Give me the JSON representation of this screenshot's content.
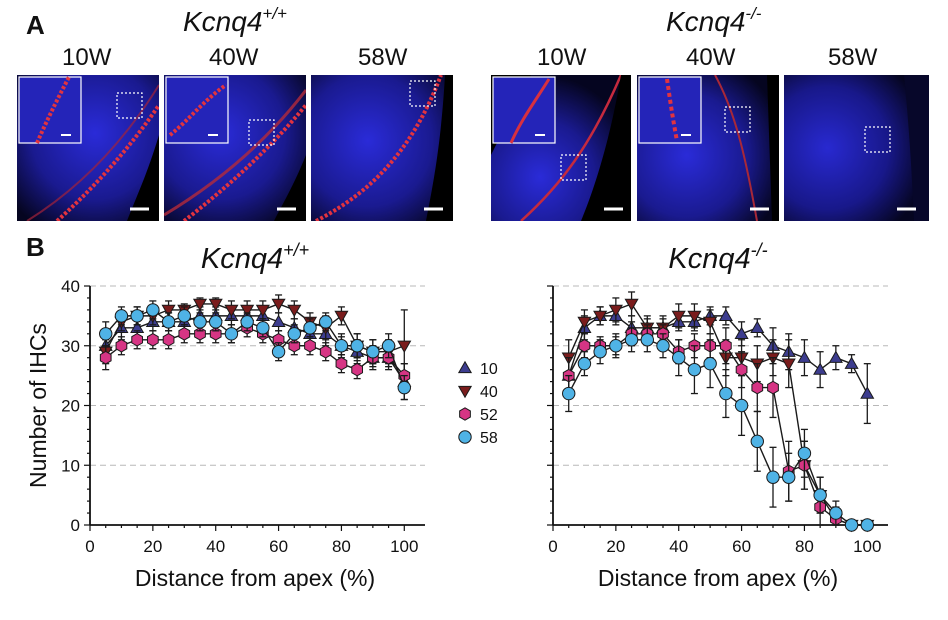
{
  "panel_a": {
    "letter": "A",
    "groups": [
      {
        "genotype": "Kcnq4",
        "superscript": "+/+",
        "ages": [
          "10W",
          "40W",
          "58W"
        ]
      },
      {
        "genotype": "Kcnq4",
        "superscript": "-/-",
        "ages": [
          "10W",
          "40W",
          "58W"
        ]
      }
    ]
  },
  "panel_b": {
    "letter": "B"
  },
  "legend": {
    "items": [
      {
        "label": "10",
        "marker": "triangle-up",
        "color": "#3d3d8f"
      },
      {
        "label": "40",
        "marker": "triangle-down",
        "color": "#7a1c1c"
      },
      {
        "label": "52",
        "marker": "hexagon",
        "color": "#d63584"
      },
      {
        "label": "58",
        "marker": "circle",
        "color": "#4fb3e6"
      }
    ]
  },
  "chart_data": [
    {
      "type": "line",
      "title": "Kcnq4",
      "title_superscript": "+/+",
      "xlabel": "Distance from apex (%)",
      "ylabel": "Number of IHCs",
      "xlim": [
        0,
        105
      ],
      "ylim": [
        0,
        40
      ],
      "xticks": [
        "0",
        "20",
        "40",
        "60",
        "80",
        "100"
      ],
      "yticks": [
        "0",
        "10",
        "20",
        "30",
        "40"
      ],
      "grid": "horizontal-dashed",
      "x": [
        5,
        10,
        15,
        20,
        25,
        30,
        35,
        40,
        45,
        50,
        55,
        60,
        65,
        70,
        75,
        80,
        85,
        90,
        95,
        100
      ],
      "series": [
        {
          "name": "10",
          "values": [
            30,
            33,
            33,
            34,
            34,
            34,
            35,
            35,
            35,
            35,
            35,
            34,
            33,
            32,
            32,
            30,
            29,
            28,
            28,
            24
          ],
          "errors": [
            2,
            2,
            1.5,
            1.5,
            1.5,
            1.5,
            1.5,
            1.5,
            1.5,
            1.5,
            1.5,
            1.5,
            1.5,
            2,
            2,
            2,
            2,
            2,
            2,
            3
          ]
        },
        {
          "name": "40",
          "values": [
            29,
            34,
            35,
            35,
            36,
            36,
            37,
            37,
            36,
            36,
            36,
            37,
            36,
            34,
            33,
            35,
            30,
            29,
            29,
            30
          ],
          "errors": [
            2,
            1.5,
            1.5,
            1.5,
            1.5,
            1,
            1,
            1,
            1.5,
            1.5,
            1.5,
            1.5,
            1.5,
            1.5,
            2,
            1.5,
            2,
            2,
            2,
            6
          ]
        },
        {
          "name": "52",
          "values": [
            28,
            30,
            31,
            31,
            31,
            32,
            32,
            32,
            32,
            33,
            32,
            31,
            30,
            30,
            29,
            27,
            26,
            28,
            28,
            25
          ],
          "errors": [
            2,
            1.5,
            1.5,
            1.5,
            1.5,
            1.5,
            1.5,
            1.5,
            1.5,
            1.5,
            1.5,
            1.5,
            1.5,
            1.5,
            1.5,
            1.5,
            1.5,
            1.5,
            1.5,
            2
          ]
        },
        {
          "name": "58",
          "values": [
            32,
            35,
            35,
            36,
            34,
            35,
            34,
            34,
            32,
            34,
            33,
            29,
            32,
            33,
            34,
            30,
            30,
            29,
            30,
            23
          ],
          "errors": [
            2,
            1.5,
            1.5,
            1.5,
            1.5,
            1.5,
            1.5,
            1.5,
            1.5,
            1.5,
            1.5,
            1.5,
            1.5,
            1.5,
            1.5,
            1.5,
            2,
            2,
            2,
            2
          ]
        }
      ]
    },
    {
      "type": "line",
      "title": "Kcnq4",
      "title_superscript": "-/-",
      "xlabel": "Distance from apex (%)",
      "ylabel": "",
      "xlim": [
        0,
        105
      ],
      "ylim": [
        0,
        40
      ],
      "xticks": [
        "0",
        "20",
        "40",
        "60",
        "80",
        "100"
      ],
      "yticks": [],
      "grid": "horizontal-dashed",
      "x": [
        5,
        10,
        15,
        20,
        25,
        30,
        35,
        40,
        45,
        50,
        55,
        60,
        65,
        70,
        75,
        80,
        85,
        90,
        95,
        100
      ],
      "series": [
        {
          "name": "10",
          "values": [
            25,
            33,
            35,
            35,
            33,
            33,
            33,
            34,
            34,
            35,
            35,
            32,
            33,
            30,
            29,
            28,
            26,
            28,
            27,
            22
          ],
          "errors": [
            3,
            2,
            1.5,
            1.5,
            2,
            1.5,
            1.5,
            1.5,
            1.5,
            1.5,
            1.5,
            2,
            1.5,
            3,
            3,
            3,
            3,
            2,
            1.5,
            5
          ]
        },
        {
          "name": "40",
          "values": [
            28,
            34,
            35,
            36,
            37,
            33,
            33,
            35,
            35,
            34,
            28,
            28,
            27,
            28,
            27,
            10,
            5,
            1,
            0,
            0
          ],
          "errors": [
            3,
            2,
            1.5,
            2,
            2,
            2,
            2,
            2,
            2,
            2,
            3,
            3,
            3,
            3,
            4,
            4,
            3,
            2,
            0.5,
            0.5
          ]
        },
        {
          "name": "52",
          "values": [
            25,
            30,
            30,
            30,
            32,
            32,
            32,
            29,
            30,
            30,
            30,
            26,
            23,
            23,
            9,
            10,
            3,
            1,
            0,
            0
          ],
          "errors": [
            3,
            2,
            1.5,
            1.5,
            2,
            1.5,
            1.5,
            2,
            2,
            2,
            3,
            3,
            4,
            5,
            5,
            4,
            3,
            2,
            0.5,
            0.5
          ]
        },
        {
          "name": "58",
          "values": [
            22,
            27,
            29,
            30,
            31,
            31,
            30,
            28,
            26,
            27,
            22,
            20,
            14,
            8,
            8,
            12,
            5,
            2,
            0,
            0
          ],
          "errors": [
            3,
            2,
            2,
            2,
            2,
            2,
            2,
            3,
            4,
            4,
            4,
            5,
            5,
            5,
            4,
            4,
            3,
            2,
            0.5,
            0.5
          ]
        }
      ]
    }
  ]
}
